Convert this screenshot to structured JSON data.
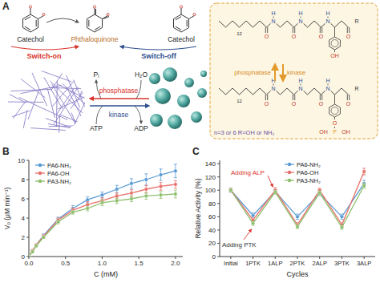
{
  "panel_a": {
    "panel_label": "A",
    "molecules": [
      "Catechol",
      "Phthaloquinone",
      "Catechol"
    ],
    "switch_on": "Switch-on",
    "switch_off": "Switch-off",
    "phosphatase": "phosphatase",
    "kinase": "kinase",
    "reagents": [
      "Pᵢ",
      "H₂O",
      "ATP",
      "ADP"
    ],
    "box_phosphatase": "phosphatase",
    "box_kinase": "kinase",
    "top_atoms": [
      "12",
      "O",
      "N",
      "H",
      "O",
      "N",
      "H",
      "O",
      "N",
      "H",
      "O",
      "R",
      "OH"
    ],
    "bottom_atoms": [
      "12",
      "O",
      "N",
      "H",
      "O",
      "N",
      "H",
      "O",
      "N",
      "H",
      "O",
      "R",
      "O",
      "P",
      "OH",
      "OH"
    ],
    "note": "n=3 or 6  R=OH or NH₂"
  },
  "chart_data": [
    {
      "type": "line",
      "title": "B",
      "x_label": "C (mM)",
      "y_label": "V₀ (μM min⁻¹)",
      "x": [
        0,
        0.05,
        0.1,
        0.2,
        0.4,
        0.6,
        0.8,
        1.0,
        1.2,
        1.4,
        1.6,
        1.8,
        2.0
      ],
      "xlim": [
        0,
        2.1
      ],
      "xticks": [
        {
          "value": 0,
          "label": "0.0"
        },
        {
          "value": 0.5,
          "label": "0.5"
        },
        {
          "value": 1,
          "label": "1.0"
        },
        {
          "value": 1.5,
          "label": "1.5"
        },
        {
          "value": 2,
          "label": "2.0"
        }
      ],
      "ylim": [
        0,
        10
      ],
      "yticks": [
        0,
        2,
        4,
        6,
        8,
        10
      ],
      "grid": false,
      "legend": "upper left",
      "series": [
        {
          "name": "PA6-NH₂",
          "color": "#5a9bd4",
          "marker": "circle",
          "values": [
            0,
            0.6,
            1.2,
            2.2,
            3.9,
            5.0,
            5.9,
            6.4,
            7.0,
            7.6,
            8.0,
            8.5,
            8.9
          ],
          "errors": [
            0,
            0.05,
            0.1,
            0.15,
            0.2,
            0.3,
            0.3,
            0.3,
            0.4,
            0.5,
            0.6,
            0.6,
            0.7
          ]
        },
        {
          "name": "PA6-OH",
          "color": "#e8706a",
          "marker": "circle",
          "values": [
            0,
            0.6,
            1.2,
            2.1,
            3.8,
            4.8,
            5.4,
            5.8,
            6.3,
            6.6,
            7.0,
            7.3,
            7.5
          ],
          "errors": [
            0,
            0.05,
            0.1,
            0.15,
            0.2,
            0.25,
            0.3,
            0.3,
            0.3,
            0.35,
            0.4,
            0.4,
            0.4
          ]
        },
        {
          "name": "PA3-NH₂",
          "color": "#8dbf6c",
          "marker": "circle",
          "values": [
            0,
            0.5,
            1.1,
            2.0,
            3.6,
            4.6,
            5.0,
            5.6,
            5.8,
            6.0,
            6.3,
            6.4,
            6.5
          ],
          "errors": [
            0,
            0.05,
            0.1,
            0.1,
            0.2,
            0.2,
            0.25,
            0.3,
            0.3,
            0.3,
            0.35,
            0.35,
            0.4
          ]
        }
      ]
    },
    {
      "type": "line",
      "title": "C",
      "x_label": "Cycles",
      "y_label": "Relative Activity (%)",
      "categories": [
        "Initial",
        "1PTK",
        "1ALP",
        "2PTK",
        "2ALP",
        "3PTK",
        "3ALP"
      ],
      "ylim": [
        0,
        145
      ],
      "yticks": [
        0,
        20,
        40,
        60,
        80,
        100,
        120,
        140
      ],
      "grid": false,
      "legend": "upper center",
      "annotations": [
        "Adding ALP",
        "Adding PTK"
      ],
      "series": [
        {
          "name": "PA6-NH₂",
          "color": "#5a9bd4",
          "marker": "circle",
          "values": [
            100,
            62,
            98,
            60,
            95,
            60,
            110
          ],
          "errors": [
            3,
            4,
            3,
            4,
            3,
            4,
            5
          ]
        },
        {
          "name": "PA6-OH",
          "color": "#e8706a",
          "marker": "circle",
          "values": [
            100,
            55,
            100,
            48,
            100,
            48,
            128
          ],
          "errors": [
            3,
            3,
            4,
            3,
            3,
            3,
            5
          ]
        },
        {
          "name": "PA3-NH₂",
          "color": "#8dbf6c",
          "marker": "circle",
          "values": [
            100,
            50,
            97,
            45,
            96,
            44,
            107
          ],
          "errors": [
            2,
            3,
            3,
            3,
            3,
            3,
            4
          ]
        }
      ]
    }
  ]
}
